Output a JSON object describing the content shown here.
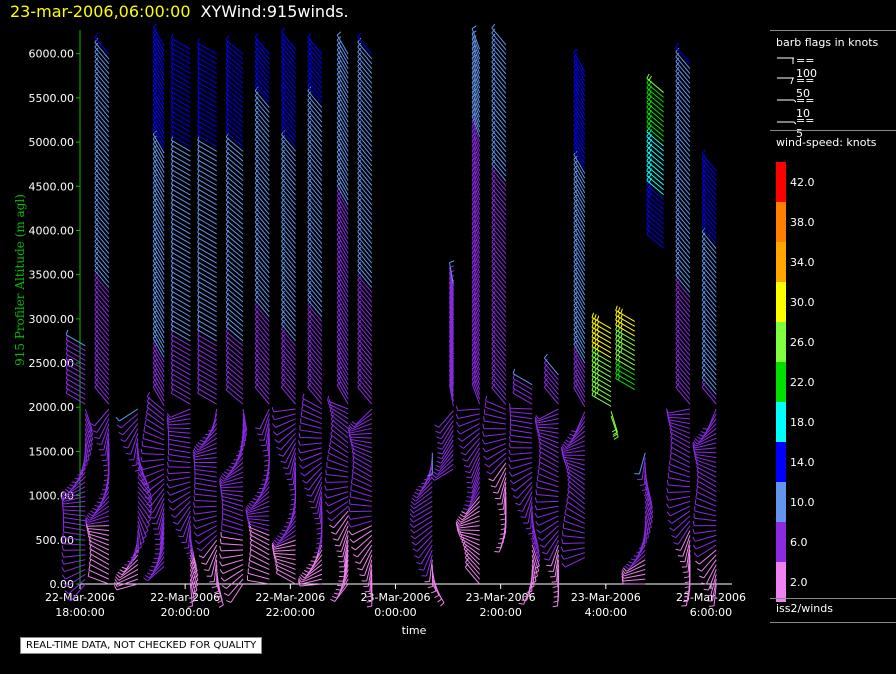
{
  "title": {
    "date": "23-mar-2006,06:00:00",
    "name": "XYWind:915winds."
  },
  "warning": "REAL-TIME DATA, NOT CHECKED FOR QUALITY",
  "legend": {
    "barb_title": "barb flags in knots",
    "barb_items": [
      "== 100",
      "== 50",
      "== 10",
      "== 5"
    ],
    "colorbar_title": "wind-speed: knots",
    "colorbar": [
      {
        "label": "42.0",
        "color": "#ff0000"
      },
      {
        "label": "38.0",
        "color": "#ff7f00"
      },
      {
        "label": "34.0",
        "color": "#ffa500"
      },
      {
        "label": "30.0",
        "color": "#ffff00"
      },
      {
        "label": "26.0",
        "color": "#80ff40"
      },
      {
        "label": "22.0",
        "color": "#00e000"
      },
      {
        "label": "18.0",
        "color": "#00ffff"
      },
      {
        "label": "14.0",
        "color": "#0000ff"
      },
      {
        "label": "10.0",
        "color": "#6495ed"
      },
      {
        "label": "6.0",
        "color": "#8a2be2"
      },
      {
        "label": "2.0",
        "color": "#ee82ee"
      }
    ],
    "footer": "iss2/winds"
  },
  "chart_data": {
    "type": "scatter",
    "title": "",
    "xlabel": "time",
    "ylabel": "915 Profiler Altitude (m agl)",
    "ylim": [
      0,
      6200
    ],
    "xlim": [
      0,
      12.4
    ],
    "xticks": [
      {
        "value": 0,
        "line1": "22-Mar-2006",
        "line2": "18:00:00"
      },
      {
        "value": 2,
        "line1": "22-Mar-2006",
        "line2": "20:00:00"
      },
      {
        "value": 4,
        "line1": "22-Mar-2006",
        "line2": "22:00:00"
      },
      {
        "value": 6,
        "line1": "23-Mar-2006",
        "line2": "0:00:00"
      },
      {
        "value": 8,
        "line1": "23-Mar-2006",
        "line2": "2:00:00"
      },
      {
        "value": 10,
        "line1": "23-Mar-2006",
        "line2": "4:00:00"
      },
      {
        "value": 12,
        "line1": "23-Mar-2006",
        "line2": "6:00:00"
      }
    ],
    "yticks": [
      "0.00",
      "500.00",
      "1000.00",
      "1500.00",
      "2000.00",
      "2500.00",
      "3000.00",
      "3500.00",
      "4000.00",
      "4500.00",
      "5000.00",
      "5500.00",
      "6000.00"
    ],
    "grid": false,
    "colors": {
      "axis": "#00c000",
      "ticklabel": "#ffffff",
      "ylabel": "#00c000"
    },
    "profiles": [
      {
        "t": 0.1,
        "z0": 0,
        "z1": 2700,
        "spd": [
          4,
          8
        ],
        "dir": 300
      },
      {
        "t": 0.55,
        "z0": 0,
        "z1": 6000,
        "spd": [
          3,
          12
        ],
        "dir": 320
      },
      {
        "t": 1.1,
        "z0": 0,
        "z1": 2000,
        "spd": [
          3,
          8
        ],
        "dir": 280
      },
      {
        "t": 1.6,
        "z0": 200,
        "z1": 6100,
        "spd": [
          4,
          14
        ],
        "dir": 330
      },
      {
        "t": 2.1,
        "z0": 0,
        "z1": 6100,
        "spd": [
          3,
          14
        ],
        "dir": 300
      },
      {
        "t": 2.6,
        "z0": 0,
        "z1": 6000,
        "spd": [
          3,
          14
        ],
        "dir": 300
      },
      {
        "t": 3.1,
        "z0": 0,
        "z1": 6000,
        "spd": [
          3,
          14
        ],
        "dir": 310
      },
      {
        "t": 3.6,
        "z0": 0,
        "z1": 6000,
        "spd": [
          3,
          13
        ],
        "dir": 320
      },
      {
        "t": 4.1,
        "z0": 0,
        "z1": 6100,
        "spd": [
          3,
          14
        ],
        "dir": 320
      },
      {
        "t": 4.6,
        "z0": 0,
        "z1": 6000,
        "spd": [
          3,
          13
        ],
        "dir": 320
      },
      {
        "t": 5.1,
        "z0": 0,
        "z1": 6000,
        "spd": [
          3,
          10
        ],
        "dir": 330
      },
      {
        "t": 5.55,
        "z0": 0,
        "z1": 6000,
        "spd": [
          3,
          12
        ],
        "dir": 320
      },
      {
        "t": 6.7,
        "z0": 0,
        "z1": 1500,
        "spd": [
          3,
          8
        ],
        "dir": 260
      },
      {
        "t": 7.1,
        "z0": 1300,
        "z1": 3400,
        "spd": [
          4,
          8
        ],
        "dir": 350
      },
      {
        "t": 7.6,
        "z0": 0,
        "z1": 6100,
        "spd": [
          3,
          9
        ],
        "dir": 340
      },
      {
        "t": 8.1,
        "z0": 600,
        "z1": 6100,
        "spd": [
          3,
          10
        ],
        "dir": 320
      },
      {
        "t": 8.6,
        "z0": 0,
        "z1": 2300,
        "spd": [
          3,
          8
        ],
        "dir": 300
      },
      {
        "t": 9.1,
        "z0": 0,
        "z1": 2400,
        "spd": [
          3,
          8
        ],
        "dir": 320
      },
      {
        "t": 9.6,
        "z0": 300,
        "z1": 5800,
        "spd": [
          4,
          14
        ],
        "dir": 330
      },
      {
        "t": 10.1,
        "z0": 1900,
        "z1": 2900,
        "spd": [
          24,
          30
        ],
        "dir": 300
      },
      {
        "t": 10.55,
        "z0": 2200,
        "z1": 3000,
        "spd": [
          22,
          30
        ],
        "dir": 300
      },
      {
        "t": 10.75,
        "z0": 0,
        "z1": 1500,
        "spd": [
          3,
          8
        ],
        "dir": 300
      },
      {
        "t": 11.1,
        "z0": 3800,
        "z1": 5600,
        "spd": [
          12,
          24
        ],
        "dir": 310
      },
      {
        "t": 11.6,
        "z0": 0,
        "z1": 5900,
        "spd": [
          3,
          12
        ],
        "dir": 320
      },
      {
        "t": 12.1,
        "z0": 0,
        "z1": 4700,
        "spd": [
          3,
          14
        ],
        "dir": 320
      }
    ]
  }
}
